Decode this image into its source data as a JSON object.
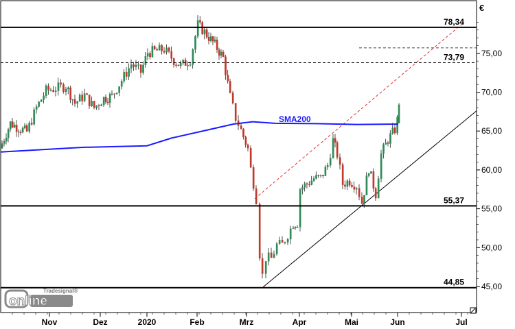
{
  "chart_data": {
    "type": "candlestick",
    "currency": "€",
    "x_ticks": [
      "Nov",
      "Dez",
      "2020",
      "Feb",
      "Mrz",
      "Apr",
      "Mai",
      "Jun",
      "Jul"
    ],
    "y_ticks": [
      "45,00",
      "50,00",
      "55,00",
      "60,00",
      "65,00",
      "70,00",
      "75,00"
    ],
    "ylim": [
      43.5,
      81.2
    ],
    "levels": [
      {
        "value": 78.34,
        "label": "78,34",
        "style": "solid"
      },
      {
        "value": 73.79,
        "label": "73,79",
        "style": "dashed"
      },
      {
        "value": 55.37,
        "label": "55,37",
        "style": "solid"
      },
      {
        "value": 44.85,
        "label": "44,85",
        "style": "solid"
      }
    ],
    "sma_label": "SMA200",
    "colors": {
      "up": "#2e8b57",
      "down": "#c0392b",
      "sma": "#1a1aff",
      "trend_dashed": "#e03030",
      "trend": "#000000"
    },
    "logo": {
      "brand": "Tradesignal®",
      "name": "online"
    }
  }
}
